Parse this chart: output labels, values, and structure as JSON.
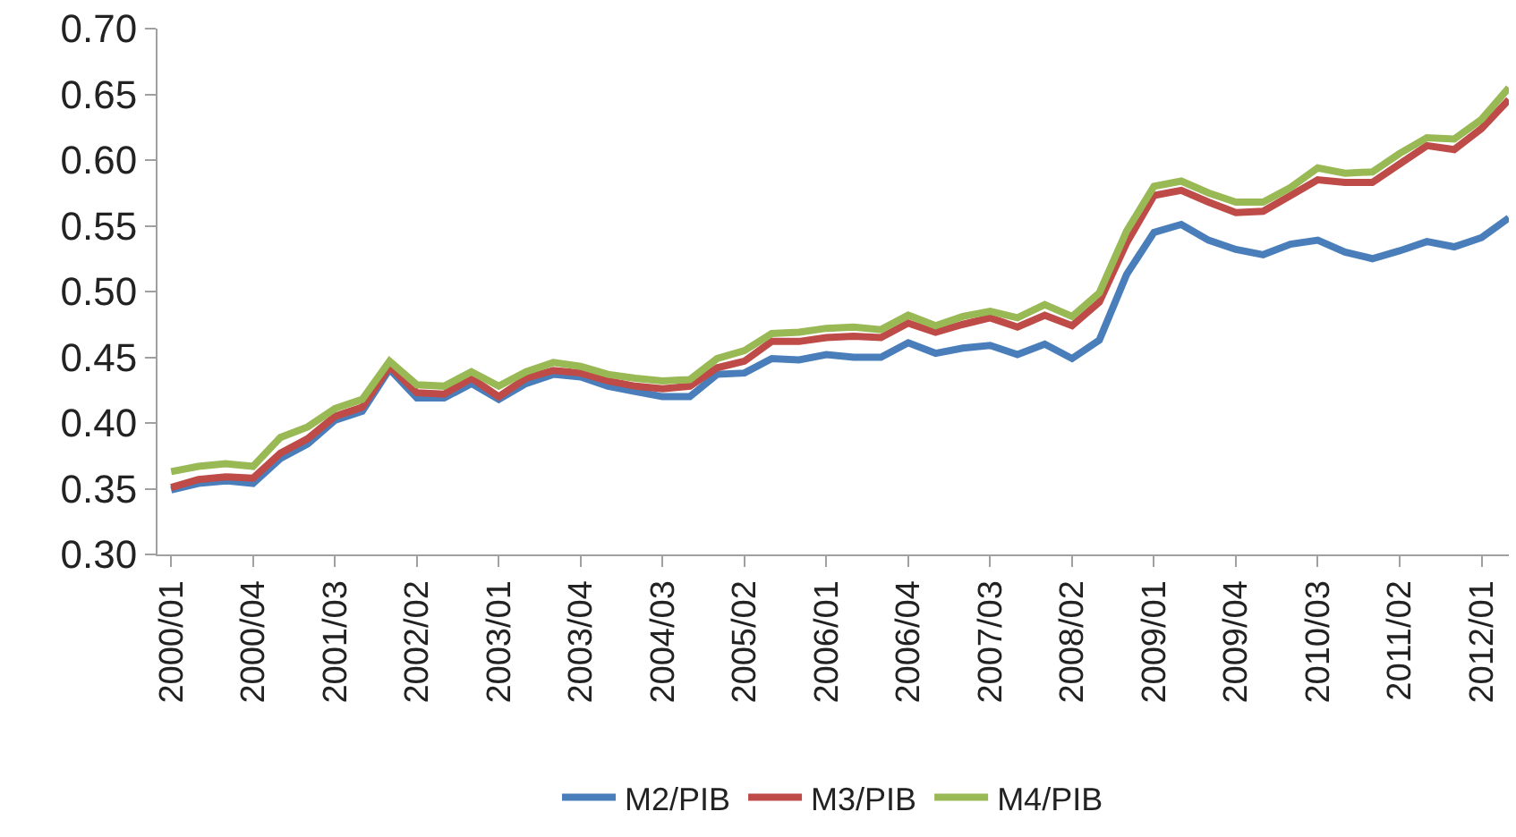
{
  "chart_data": {
    "type": "line",
    "categories": [
      "2000/01",
      null,
      null,
      "2000/04",
      null,
      null,
      "2001/03",
      null,
      null,
      "2002/02",
      null,
      null,
      "2003/01",
      null,
      null,
      "2003/04",
      null,
      null,
      "2004/03",
      null,
      null,
      "2005/02",
      null,
      null,
      "2006/01",
      null,
      null,
      "2006/04",
      null,
      null,
      "2007/03",
      null,
      null,
      "2008/02",
      null,
      null,
      "2009/01",
      null,
      null,
      "2009/04",
      null,
      null,
      "2010/03",
      null,
      null,
      "2011/02",
      null,
      null,
      "2012/01",
      null
    ],
    "series": [
      {
        "name": "M2/PIB",
        "color": "#4a7ebb",
        "values": [
          0.349,
          0.354,
          0.356,
          0.354,
          0.373,
          0.384,
          0.402,
          0.409,
          0.441,
          0.419,
          0.419,
          0.43,
          0.418,
          0.43,
          0.437,
          0.435,
          0.428,
          0.424,
          0.42,
          0.42,
          0.437,
          0.438,
          0.449,
          0.448,
          0.452,
          0.45,
          0.45,
          0.461,
          0.453,
          0.457,
          0.459,
          0.452,
          0.46,
          0.449,
          0.463,
          0.513,
          0.545,
          0.551,
          0.539,
          0.532,
          0.528,
          0.536,
          0.539,
          0.53,
          0.525,
          0.531,
          0.538,
          0.534,
          0.541,
          0.556
        ]
      },
      {
        "name": "M3/PIB",
        "color": "#be4b48",
        "values": [
          0.351,
          0.357,
          0.359,
          0.358,
          0.377,
          0.388,
          0.405,
          0.412,
          0.443,
          0.423,
          0.422,
          0.434,
          0.42,
          0.434,
          0.44,
          0.438,
          0.432,
          0.428,
          0.426,
          0.428,
          0.442,
          0.447,
          0.462,
          0.462,
          0.465,
          0.466,
          0.465,
          0.476,
          0.469,
          0.475,
          0.48,
          0.473,
          0.482,
          0.474,
          0.492,
          0.537,
          0.573,
          0.577,
          0.568,
          0.56,
          0.561,
          0.573,
          0.585,
          0.583,
          0.583,
          0.597,
          0.611,
          0.608,
          0.624,
          0.646
        ]
      },
      {
        "name": "M4/PIB",
        "color": "#98b954",
        "values": [
          0.363,
          0.367,
          0.369,
          0.367,
          0.389,
          0.397,
          0.411,
          0.418,
          0.447,
          0.429,
          0.428,
          0.439,
          0.428,
          0.439,
          0.446,
          0.443,
          0.437,
          0.434,
          0.432,
          0.433,
          0.449,
          0.455,
          0.468,
          0.469,
          0.472,
          0.473,
          0.471,
          0.482,
          0.474,
          0.481,
          0.485,
          0.48,
          0.49,
          0.481,
          0.499,
          0.546,
          0.58,
          0.584,
          0.575,
          0.568,
          0.568,
          0.579,
          0.594,
          0.59,
          0.591,
          0.605,
          0.617,
          0.616,
          0.631,
          0.655
        ]
      }
    ],
    "ylim": [
      0.3,
      0.7
    ],
    "yticks": [
      {
        "value": 0.3,
        "label": "0.30"
      },
      {
        "value": 0.35,
        "label": "0.35"
      },
      {
        "value": 0.4,
        "label": "0.40"
      },
      {
        "value": 0.45,
        "label": "0.45"
      },
      {
        "value": 0.5,
        "label": "0.50"
      },
      {
        "value": 0.55,
        "label": "0.55"
      },
      {
        "value": 0.6,
        "label": "0.60"
      },
      {
        "value": 0.65,
        "label": "0.65"
      },
      {
        "value": 0.7,
        "label": "0.70"
      }
    ],
    "legend": "bottom",
    "marker": "none",
    "line_style": "solid"
  }
}
